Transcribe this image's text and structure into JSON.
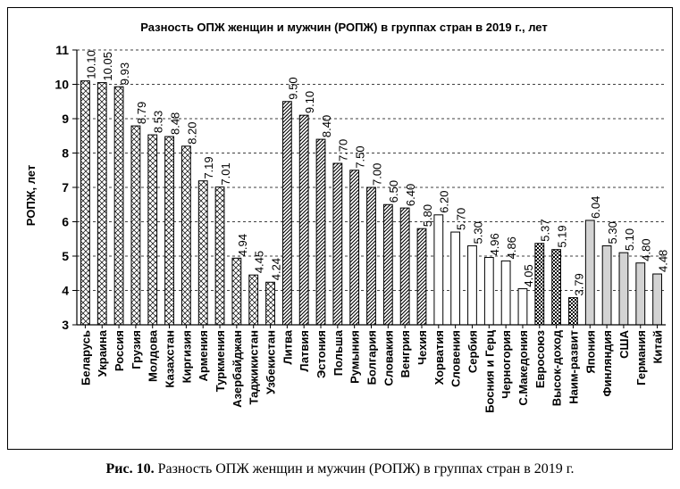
{
  "chart_data": {
    "type": "bar",
    "title": "Разность ОПЖ женщин и мужчин (РОПЖ) в группах стран в 2019 г., лет",
    "ylabel": "РОПЖ, лет",
    "xlabel": "",
    "ylim": [
      3,
      11
    ],
    "yticks": [
      "3",
      "4",
      "5",
      "6",
      "7",
      "8",
      "9",
      "10",
      "11"
    ],
    "grid": "horizontal dashed",
    "categories": [
      "Беларусь",
      "Украина",
      "Россия",
      "Грузия",
      "Молдова",
      "Казахстан",
      "Киргизия",
      "Армения",
      "Туркмения",
      "Азербайджан",
      "Таджикистан",
      "Узбекистан",
      "Литва",
      "Латвия",
      "Эстония",
      "Польша",
      "Румыния",
      "Болгария",
      "Словакия",
      "Венгрия",
      "Чехия",
      "Хорватия",
      "Словения",
      "Сербия",
      "Босния и Герц",
      "Черногория",
      "С.Македония",
      "Евросоюз",
      "Высок-доход",
      "Наим-развит",
      "Япония",
      "Финляндия",
      "США",
      "Германия",
      "Китай"
    ],
    "values": [
      10.1,
      10.05,
      9.93,
      8.79,
      8.53,
      8.48,
      8.2,
      7.19,
      7.01,
      4.94,
      4.45,
      4.24,
      9.5,
      9.1,
      8.4,
      7.7,
      7.5,
      7.0,
      6.5,
      6.4,
      5.8,
      6.2,
      5.7,
      5.3,
      4.96,
      4.86,
      4.05,
      5.37,
      5.19,
      3.79,
      6.04,
      5.3,
      5.1,
      4.8,
      4.48
    ],
    "labels": [
      "10.10",
      "10.05",
      "9.93",
      "8.79",
      "8.53",
      "8.48",
      "8.20",
      "7.19",
      "7.01",
      "4.94",
      "4.45",
      "4.24",
      "9.50",
      "9.10",
      "8.40",
      "7.70",
      "7.50",
      "7.00",
      "6.50",
      "6.40",
      "5.80",
      "6.20",
      "5.70",
      "5.30",
      "4.96",
      "4.86",
      "4.05",
      "5.37",
      "5.19",
      "3.79",
      "6.04",
      "5.30",
      "5.10",
      "4.80",
      "4.48"
    ],
    "bar_styles": [
      "cross",
      "cross",
      "cross",
      "cross",
      "cross",
      "cross",
      "cross",
      "cross",
      "cross",
      "cross",
      "cross",
      "cross",
      "diag",
      "diag",
      "diag",
      "diag",
      "diag",
      "diag",
      "diag",
      "diag",
      "diag",
      "white",
      "white",
      "white",
      "white",
      "white",
      "white",
      "check",
      "check",
      "check",
      "gray",
      "gray",
      "gray",
      "gray",
      "gray"
    ],
    "colors": {
      "gray_fill": "#d3d3d3",
      "white_fill": "#ffffff",
      "outline": "#000000"
    }
  },
  "caption": {
    "bold": "Рис. 10.",
    "text": " Разность ОПЖ женщин и мужчин (РОПЖ) в группах стран в 2019 г."
  }
}
